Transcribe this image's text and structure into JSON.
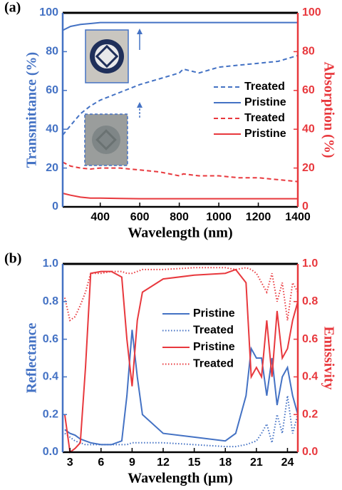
{
  "chart_data": [
    {
      "type": "line",
      "panel_label": "(a)",
      "xlabel": "Wavelength (nm)",
      "ylabel": "Transmittance (%)",
      "y2label": "Absorption (%)",
      "ycolor": "#4472c4",
      "y2color": "#e8383d",
      "legend": "center right",
      "xlim": [
        210,
        1400
      ],
      "xticks": [
        400,
        600,
        800,
        1000,
        1200,
        1400
      ],
      "ylim": [
        0,
        100
      ],
      "yticks": [
        0,
        20,
        40,
        60,
        80,
        100
      ],
      "y2lim": [
        0,
        100
      ],
      "y2ticks": [
        0,
        20,
        40,
        60,
        80,
        100
      ],
      "x": [
        210,
        250,
        300,
        350,
        400,
        500,
        600,
        700,
        800,
        820,
        900,
        1000,
        1100,
        1200,
        1300,
        1400
      ],
      "series": [
        {
          "name": "Treated",
          "color": "#4472c4",
          "style": "dashed",
          "axis": "y",
          "values": [
            37,
            42,
            48,
            52,
            55,
            59,
            63,
            66,
            69,
            71,
            69,
            72,
            73,
            74,
            75,
            78
          ]
        },
        {
          "name": "Pristine",
          "color": "#4472c4",
          "style": "solid",
          "axis": "y",
          "values": [
            91,
            93,
            94,
            94.5,
            95,
            95,
            95,
            95,
            95,
            95,
            95,
            95,
            95,
            95,
            95,
            95
          ]
        },
        {
          "name": "Treated",
          "color": "#e8383d",
          "style": "dashed",
          "axis": "y2",
          "values": [
            23,
            21,
            20,
            19.5,
            20,
            20,
            19,
            18,
            16,
            17,
            16,
            16,
            15,
            15,
            14,
            13
          ]
        },
        {
          "name": "Pristine",
          "color": "#e8383d",
          "style": "solid",
          "axis": "y2",
          "values": [
            7,
            6,
            5,
            4.5,
            4.5,
            4.3,
            4.2,
            4.2,
            4.2,
            4.2,
            4.2,
            4.2,
            4.2,
            4.2,
            4.2,
            4.2
          ]
        }
      ]
    },
    {
      "type": "line",
      "panel_label": "(b)",
      "xlabel": "Wavelength (μm)",
      "ylabel": "Reflectance",
      "y2label": "Emissivity",
      "ycolor": "#4472c4",
      "y2color": "#e8383d",
      "legend": "center",
      "xlim": [
        2.3,
        25
      ],
      "xticks": [
        3,
        6,
        9,
        12,
        15,
        18,
        21,
        24
      ],
      "ylim": [
        0,
        1
      ],
      "yticks": [
        {
          "value": 0,
          "label": "0.0"
        },
        0.2,
        0.4,
        0.6,
        0.8,
        {
          "value": 1,
          "label": "1.0"
        }
      ],
      "y2lim": [
        0,
        1
      ],
      "y2ticks": [
        {
          "value": 0,
          "label": "0.0"
        },
        0.2,
        0.4,
        0.6,
        0.8,
        {
          "value": 1,
          "label": "1.0"
        }
      ],
      "x": [
        2.5,
        3,
        3.5,
        4,
        4.5,
        5,
        6,
        7,
        8,
        8.5,
        9,
        9.5,
        10,
        12,
        15,
        18,
        19,
        20,
        20.5,
        21,
        21.5,
        22,
        22.5,
        23,
        23.5,
        24,
        24.5,
        25
      ],
      "series": [
        {
          "name": "Pristine",
          "color": "#4472c4",
          "style": "solid",
          "axis": "y",
          "values": [
            0.12,
            0.1,
            0.09,
            0.07,
            0.06,
            0.05,
            0.04,
            0.04,
            0.06,
            0.3,
            0.65,
            0.4,
            0.2,
            0.1,
            0.08,
            0.06,
            0.1,
            0.3,
            0.55,
            0.5,
            0.5,
            0.3,
            0.5,
            0.25,
            0.4,
            0.45,
            0.3,
            0.2
          ]
        },
        {
          "name": "Treated",
          "color": "#4472c4",
          "style": "dotted",
          "axis": "y",
          "values": [
            0.1,
            0.08,
            0.06,
            0.05,
            0.04,
            0.04,
            0.04,
            0.04,
            0.04,
            0.04,
            0.05,
            0.05,
            0.05,
            0.05,
            0.04,
            0.03,
            0.03,
            0.04,
            0.05,
            0.06,
            0.1,
            0.15,
            0.05,
            0.2,
            0.1,
            0.3,
            0.1,
            0.2
          ]
        },
        {
          "name": "Pristine",
          "color": "#e8383d",
          "style": "solid",
          "axis": "y2",
          "values": [
            0.2,
            0.0,
            0.02,
            0.05,
            0.45,
            0.95,
            0.96,
            0.96,
            0.93,
            0.6,
            0.35,
            0.7,
            0.85,
            0.92,
            0.94,
            0.95,
            0.97,
            0.9,
            0.4,
            0.45,
            0.4,
            0.7,
            0.4,
            0.75,
            0.5,
            0.55,
            0.7,
            0.8
          ]
        },
        {
          "name": "Treated",
          "color": "#e8383d",
          "style": "dotted",
          "axis": "y2",
          "values": [
            0.82,
            0.7,
            0.72,
            0.78,
            0.85,
            0.95,
            0.95,
            0.96,
            0.96,
            0.95,
            0.95,
            0.96,
            0.97,
            0.97,
            0.98,
            0.98,
            0.97,
            0.98,
            0.97,
            0.95,
            0.9,
            0.85,
            0.95,
            0.8,
            0.9,
            0.7,
            0.9,
            0.85
          ]
        }
      ]
    }
  ]
}
